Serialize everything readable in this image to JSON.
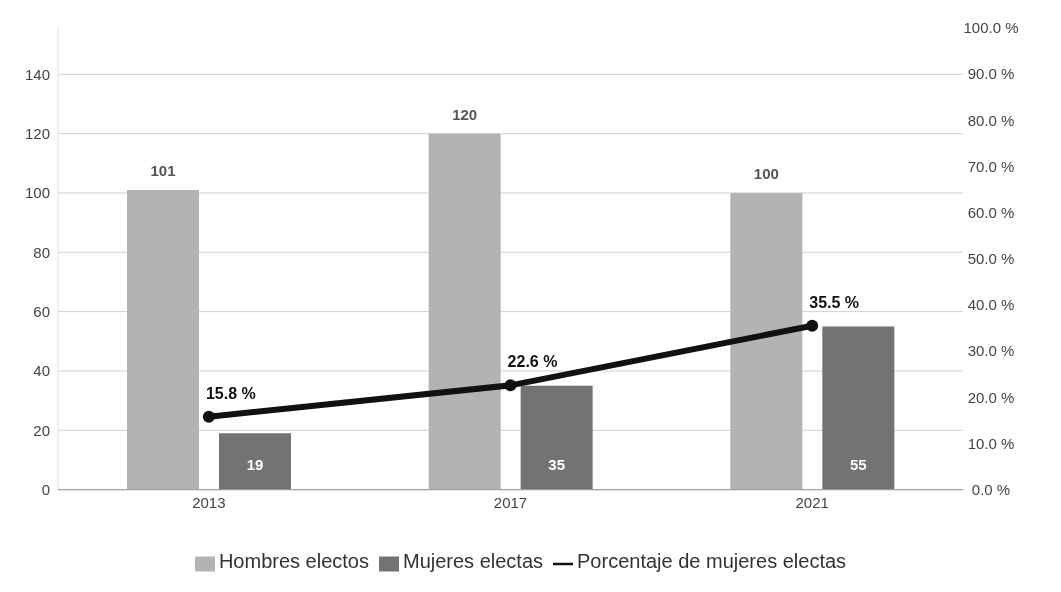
{
  "chart_data": {
    "type": "bar",
    "categories": [
      "2013",
      "2017",
      "2021"
    ],
    "series": [
      {
        "name": "Hombres electos",
        "color": "#b3b3b3",
        "values": [
          101,
          120,
          100
        ],
        "value_labels": [
          "101",
          "120",
          "100"
        ]
      },
      {
        "name": "Mujeres electas",
        "color": "#737373",
        "values": [
          19,
          35,
          55
        ],
        "value_labels": [
          "19",
          "35",
          "55"
        ]
      },
      {
        "name": "Porcentaje de mujeres electas",
        "type": "line",
        "axis": "y2",
        "color": "#111111",
        "values": [
          15.8,
          22.6,
          35.5
        ],
        "value_labels": [
          "15.8 %",
          "22.6 %",
          "35.5 %"
        ]
      }
    ],
    "ylim": [
      0,
      155.6
    ],
    "yticks": [
      0,
      20,
      40,
      60,
      80,
      100,
      120,
      140
    ],
    "y2lim": [
      0,
      100
    ],
    "y2ticks": [
      {
        "value": 0,
        "label": "0.0 %"
      },
      {
        "value": 10,
        "label": "10.0 %"
      },
      {
        "value": 20,
        "label": "20.0 %"
      },
      {
        "value": 30,
        "label": "30.0 %"
      },
      {
        "value": 40,
        "label": "40.0 %"
      },
      {
        "value": 50,
        "label": "50.0 %"
      },
      {
        "value": 60,
        "label": "60.0 %"
      },
      {
        "value": 70,
        "label": "70.0 %"
      },
      {
        "value": 80,
        "label": "80.0 %"
      },
      {
        "value": 90,
        "label": "90.0 %"
      },
      {
        "value": 100,
        "label": "100.0 %"
      }
    ],
    "grid": "y",
    "legend": "bottom",
    "marker": "circle",
    "line_style": "solid"
  }
}
